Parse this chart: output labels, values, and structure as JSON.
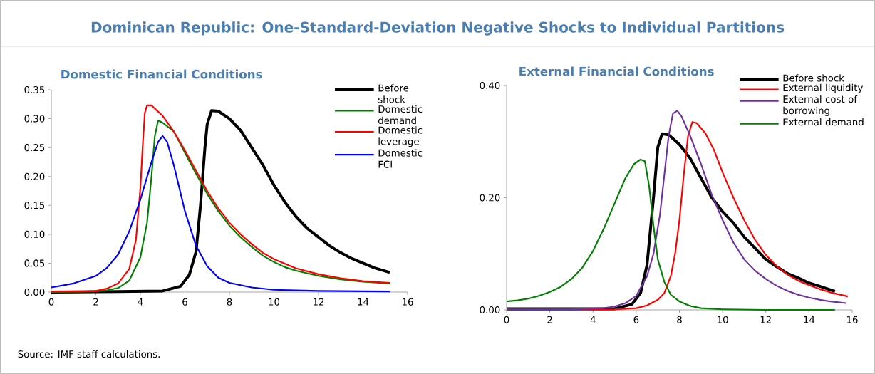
{
  "chart_data": [
    {
      "type": "line",
      "title": "Domestic Financial  Conditions",
      "annotations": [
        "Dominican Republic: One-Standard-Deviation Negative Shocks to Individual Partitions",
        "Source: IMF staff calculations."
      ],
      "xlim": [
        0,
        16
      ],
      "xticks": [
        0,
        2,
        4,
        6,
        8,
        10,
        12,
        14,
        16
      ],
      "ylim": [
        0,
        0.35
      ],
      "yticks": [
        {
          "value": 0,
          "label": "0.00"
        },
        {
          "value": 0.05,
          "label": "0.05"
        },
        {
          "value": 0.1,
          "label": "0.10"
        },
        {
          "value": 0.15,
          "label": "0.15"
        },
        {
          "value": 0.2,
          "label": "0.20"
        },
        {
          "value": 0.25,
          "label": "0.25"
        },
        {
          "value": 0.3,
          "label": "0.30"
        },
        {
          "value": 0.35,
          "label": "0.35"
        }
      ],
      "grid": false,
      "legend": "top right",
      "series": [
        {
          "name": "Before shock",
          "color": "#000000",
          "x": [
            0,
            3,
            5,
            5.8,
            6.2,
            6.5,
            6.7,
            6.9,
            7.0,
            7.2,
            7.5,
            8,
            8.5,
            9,
            9.5,
            10,
            10.5,
            11,
            11.5,
            12,
            12.5,
            13,
            13.5,
            14,
            14.5,
            15.2
          ],
          "values": [
            0,
            0.001,
            0.002,
            0.01,
            0.03,
            0.07,
            0.15,
            0.25,
            0.29,
            0.314,
            0.313,
            0.3,
            0.28,
            0.25,
            0.22,
            0.185,
            0.155,
            0.13,
            0.11,
            0.095,
            0.08,
            0.068,
            0.058,
            0.05,
            0.042,
            0.034
          ]
        },
        {
          "name": "Domestic demand",
          "color": "#008000",
          "x": [
            0,
            2,
            2.5,
            3,
            3.5,
            4,
            4.3,
            4.5,
            4.65,
            4.8,
            5,
            5.5,
            6,
            6.5,
            7,
            7.5,
            8,
            8.5,
            9,
            9.5,
            10,
            10.5,
            11,
            12,
            13,
            14,
            15.2
          ],
          "values": [
            0,
            0.001,
            0.003,
            0.007,
            0.02,
            0.06,
            0.12,
            0.2,
            0.27,
            0.297,
            0.293,
            0.278,
            0.241,
            0.205,
            0.17,
            0.14,
            0.115,
            0.095,
            0.078,
            0.063,
            0.052,
            0.043,
            0.037,
            0.028,
            0.022,
            0.018,
            0.015
          ]
        },
        {
          "name": "Domestic leverage",
          "color": "#ff0000",
          "x": [
            0,
            1.5,
            2,
            2.5,
            3,
            3.5,
            3.8,
            4.0,
            4.1,
            4.2,
            4.3,
            4.5,
            5,
            5.5,
            6,
            6.5,
            7,
            7.5,
            8,
            8.5,
            9,
            9.5,
            10,
            11,
            12,
            13,
            14,
            15.2
          ],
          "values": [
            0.001,
            0.001,
            0.002,
            0.006,
            0.015,
            0.04,
            0.09,
            0.18,
            0.25,
            0.31,
            0.323,
            0.323,
            0.305,
            0.278,
            0.245,
            0.21,
            0.175,
            0.145,
            0.12,
            0.1,
            0.083,
            0.068,
            0.057,
            0.041,
            0.031,
            0.024,
            0.019,
            0.016
          ]
        },
        {
          "name": "Domestic FCI",
          "color": "#0000ff",
          "x": [
            0,
            1,
            2,
            2.5,
            3,
            3.5,
            4,
            4.5,
            4.8,
            5,
            5.2,
            5.5,
            6,
            6.5,
            7,
            7.5,
            8,
            9,
            10,
            12,
            15.2
          ],
          "values": [
            0.008,
            0.015,
            0.028,
            0.042,
            0.065,
            0.105,
            0.16,
            0.225,
            0.26,
            0.27,
            0.26,
            0.22,
            0.14,
            0.08,
            0.045,
            0.025,
            0.016,
            0.008,
            0.004,
            0.002,
            0.001
          ]
        }
      ]
    },
    {
      "type": "line",
      "title": "External Financial  Conditions",
      "xlim": [
        0,
        16
      ],
      "xticks": [
        0,
        2,
        4,
        6,
        8,
        10,
        12,
        14,
        16
      ],
      "ylim": [
        0,
        0.4
      ],
      "yticks": [
        {
          "value": 0,
          "label": "0.00"
        },
        {
          "value": 0.2,
          "label": "0.20"
        },
        {
          "value": 0.4,
          "label": "0.40"
        }
      ],
      "grid": false,
      "legend": "top right",
      "series": [
        {
          "name": "Before shock",
          "color": "#000000",
          "x": [
            0,
            5,
            5.8,
            6.2,
            6.5,
            6.8,
            7.0,
            7.2,
            7.5,
            8,
            8.5,
            9,
            9.5,
            10,
            10.5,
            11,
            11.5,
            12,
            12.5,
            13,
            13.5,
            14,
            14.5,
            15.2
          ],
          "values": [
            0.002,
            0.002,
            0.01,
            0.03,
            0.08,
            0.2,
            0.29,
            0.314,
            0.312,
            0.295,
            0.27,
            0.235,
            0.2,
            0.175,
            0.155,
            0.13,
            0.11,
            0.09,
            0.077,
            0.065,
            0.057,
            0.048,
            0.042,
            0.033
          ]
        },
        {
          "name": "External liquidity",
          "color": "#ff0000",
          "x": [
            0,
            5,
            6,
            6.5,
            7,
            7.3,
            7.6,
            7.8,
            8.0,
            8.2,
            8.4,
            8.6,
            8.8,
            9.2,
            9.6,
            10,
            10.5,
            11,
            11.5,
            12,
            12.5,
            13,
            13.5,
            14,
            14.5,
            15,
            15.8
          ],
          "values": [
            0,
            0.001,
            0.003,
            0.008,
            0.018,
            0.03,
            0.06,
            0.1,
            0.16,
            0.24,
            0.31,
            0.335,
            0.333,
            0.315,
            0.285,
            0.245,
            0.2,
            0.16,
            0.125,
            0.098,
            0.078,
            0.063,
            0.052,
            0.044,
            0.037,
            0.031,
            0.024
          ]
        },
        {
          "name": "External cost of borrowing",
          "color": "#7030a0",
          "x": [
            0,
            3,
            4.5,
            5,
            5.5,
            6,
            6.5,
            6.8,
            7.1,
            7.3,
            7.5,
            7.7,
            7.9,
            8.1,
            8.5,
            9,
            9.5,
            10,
            10.5,
            11,
            11.5,
            12,
            12.5,
            13,
            13.5,
            14,
            14.5,
            15,
            15.7
          ],
          "values": [
            0.001,
            0.001,
            0.003,
            0.006,
            0.012,
            0.025,
            0.06,
            0.1,
            0.17,
            0.24,
            0.31,
            0.35,
            0.355,
            0.345,
            0.31,
            0.26,
            0.205,
            0.16,
            0.12,
            0.09,
            0.07,
            0.055,
            0.043,
            0.034,
            0.027,
            0.022,
            0.018,
            0.015,
            0.012
          ]
        },
        {
          "name": "External demand",
          "color": "#008000",
          "x": [
            0,
            0.5,
            1,
            1.5,
            2,
            2.5,
            3,
            3.5,
            4,
            4.5,
            5,
            5.5,
            5.9,
            6.2,
            6.4,
            6.6,
            6.8,
            7.0,
            7.3,
            7.6,
            8,
            8.5,
            9,
            10,
            12,
            15.2
          ],
          "values": [
            0.015,
            0.017,
            0.02,
            0.025,
            0.032,
            0.041,
            0.055,
            0.075,
            0.105,
            0.145,
            0.19,
            0.235,
            0.26,
            0.268,
            0.265,
            0.22,
            0.15,
            0.09,
            0.05,
            0.027,
            0.015,
            0.007,
            0.003,
            0.001,
            0,
            0
          ]
        }
      ]
    }
  ]
}
